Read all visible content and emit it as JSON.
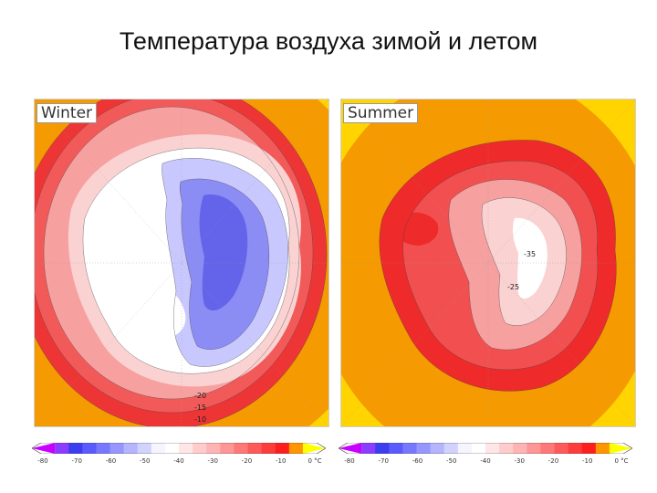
{
  "title": "Температура воздуха зимой и летом",
  "panels": {
    "winter": {
      "label": "Winter",
      "contour_labels": [
        "-20",
        "-15",
        "-10"
      ]
    },
    "summer": {
      "label": "Summer",
      "contour_labels": [
        "-35",
        "-25"
      ]
    }
  },
  "colorbar": {
    "ticks": [
      "-80",
      "-70",
      "-60",
      "-50",
      "-40",
      "-30",
      "-20",
      "-10",
      "0 °C"
    ],
    "colors": [
      "#c800ff",
      "#8c3cff",
      "#3c3cf0",
      "#5a5aff",
      "#7878ff",
      "#9696ff",
      "#b4b4ff",
      "#d2d2ff",
      "#f5f5ff",
      "#ffffff",
      "#ffe6e6",
      "#ffcccc",
      "#ffb4b4",
      "#ff9696",
      "#ff7878",
      "#ff5a5a",
      "#ff3c3c",
      "#ff1e1e",
      "#ff9600",
      "#ffff00"
    ]
  },
  "colors": {
    "ocean_warm": "#ffd400",
    "orange": "#f59a00",
    "red_dark": "#ee2a2a",
    "red": "#f25050",
    "pink": "#f7a0a0",
    "pink_light": "#fad2d2",
    "white": "#ffffff",
    "blue_light": "#c8c8ff",
    "blue": "#8c8cf5",
    "blue_dark": "#6464eb"
  }
}
